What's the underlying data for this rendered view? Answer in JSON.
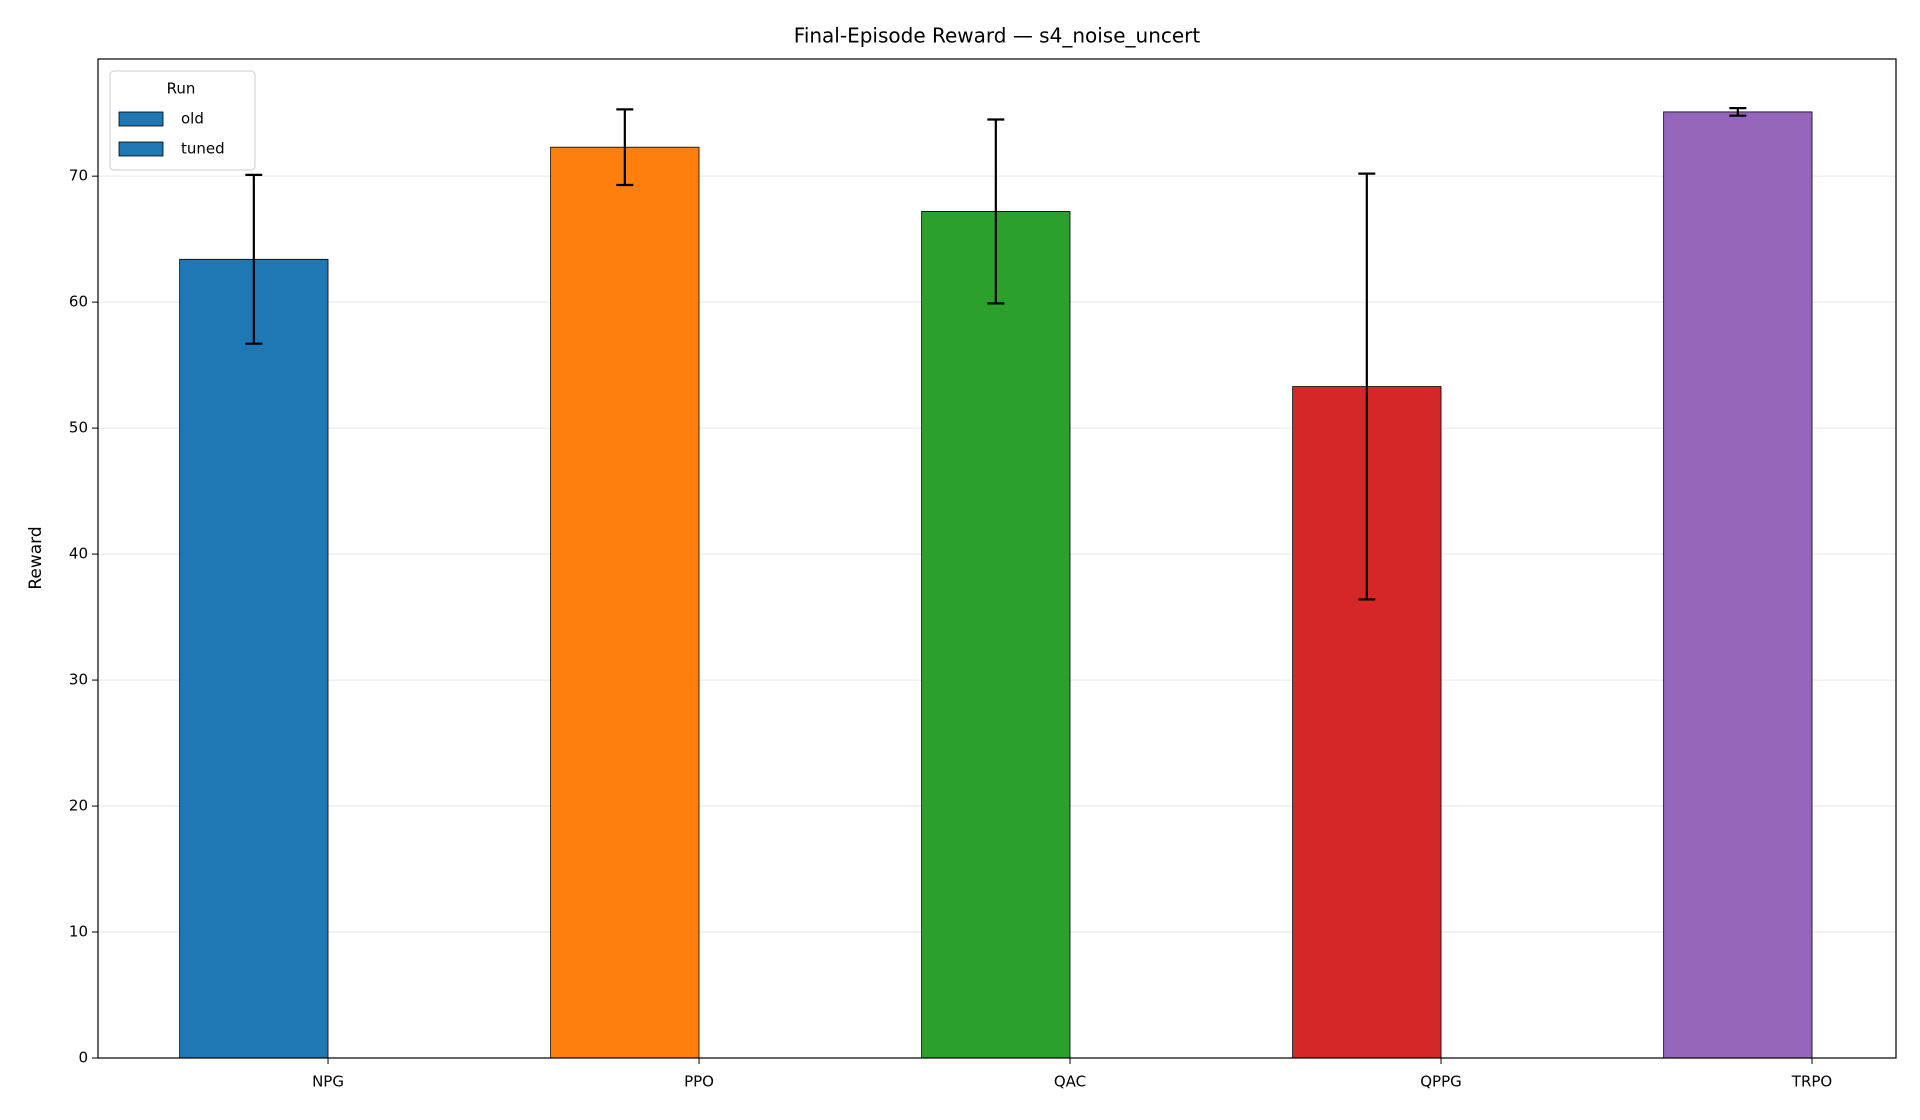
{
  "chart_data": {
    "type": "bar",
    "title": "Final-Episode Reward — s4_noise_uncert",
    "ylabel": "Reward",
    "categories": [
      "NPG",
      "PPO",
      "QAC",
      "QPPG",
      "TRPO"
    ],
    "legend_title": "Run",
    "series": [
      {
        "name": "old",
        "color": "#1f77b4",
        "bar_colors": [
          "#1f77b4",
          "#ff7f0e",
          "#2ca02c",
          "#d62728",
          "#9467bd"
        ],
        "values": [
          63.4,
          72.3,
          67.2,
          53.3,
          75.1
        ],
        "errors": [
          6.7,
          3.0,
          7.3,
          16.9,
          0.3
        ]
      },
      {
        "name": "tuned",
        "color": "#1f77b4",
        "values": [
          null,
          null,
          null,
          null,
          null
        ]
      }
    ],
    "ylim": [
      0,
      79.3
    ],
    "yticks": [
      0,
      10,
      20,
      30,
      40,
      50,
      60,
      70
    ],
    "grid": true,
    "legend": "upper left"
  }
}
